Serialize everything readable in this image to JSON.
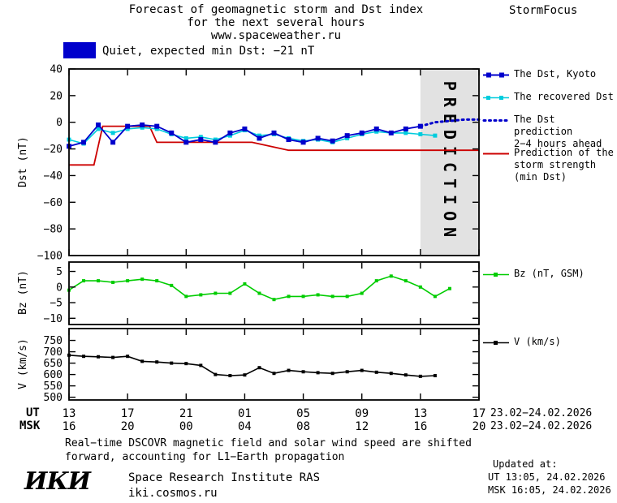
{
  "header": {
    "title_line1": "Forecast of geomagnetic storm and Dst index",
    "title_line2": "for the next several hours",
    "title_line3": "www.spaceweather.ru",
    "brand": "StormFocus"
  },
  "banner": {
    "label": "Quiet, expected min Dst: −21 nT",
    "swatch_color": "#0000cc"
  },
  "colors": {
    "kyoto": "#0000cc",
    "recovered": "#00ccdd",
    "prediction": "#0000cc",
    "storm": "#cc0000",
    "bz": "#00cc00",
    "v": "#000000",
    "band_fill": "#e2e2e2",
    "band_text": "#b4b4b4"
  },
  "legend": {
    "kyoto": "The Dst, Kyoto",
    "recovered": "The recovered Dst",
    "prediction_l1": "The Dst prediction",
    "prediction_l2": "2−4 hours ahead",
    "storm_l1": "Prediction of the",
    "storm_l2": "storm strength",
    "storm_l3": "(min Dst)",
    "bz": "Bz (nT, GSM)",
    "v": "V (km/s)"
  },
  "xaxis": {
    "ut_label": "UT",
    "msk_label": "MSK",
    "tick_hours": [
      0,
      4,
      8,
      12,
      16,
      20,
      24,
      28
    ],
    "ut_ticks": [
      "13",
      "17",
      "21",
      "01",
      "05",
      "09",
      "13",
      "17"
    ],
    "msk_ticks": [
      "16",
      "20",
      "00",
      "04",
      "08",
      "12",
      "16",
      "20"
    ],
    "ut_date": "23.02−24.02.2026",
    "msk_date": "23.02−24.02.2026"
  },
  "footer": {
    "note_l1": "Real−time DSCOVR magnetic field and solar wind speed are shifted",
    "note_l2": "forward, accounting for L1−Earth propagation",
    "updated_label": "Updated at:",
    "updated_ut": "UT  13:05, 24.02.2026",
    "updated_msk": "MSK 16:05, 24.02.2026",
    "logo": "ИКИ",
    "institute": "Space Research Institute RAS",
    "site": "iki.cosmos.ru"
  },
  "chart_data": [
    {
      "id": "dst",
      "type": "line",
      "ylabel": "Dst (nT)",
      "ylim": [
        -100,
        40
      ],
      "ytick_values": [
        40,
        20,
        0,
        -20,
        -40,
        -60,
        -80,
        -100
      ],
      "ytick_labels": [
        "40",
        "20",
        "0",
        "−20",
        "−40",
        "−60",
        "−80",
        "−100"
      ],
      "xlim": [
        0,
        28
      ],
      "xtick_values": [
        0,
        4,
        8,
        12,
        16,
        20,
        24,
        28
      ],
      "prediction_band": {
        "start": 24,
        "end": 28,
        "label": "PREDICTION"
      },
      "series": [
        {
          "id": "storm-strength",
          "name": "Prediction of the storm strength (min Dst)",
          "color": "#cc0000",
          "line": "solid",
          "marker": "none",
          "width": 1.8,
          "x": [
            0,
            1.7,
            2.3,
            5.5,
            6,
            12.5,
            15,
            28
          ],
          "values": [
            -32,
            -32,
            -3,
            -3,
            -15,
            -15,
            -21,
            -21
          ]
        },
        {
          "id": "dst-recovered",
          "name": "The recovered Dst",
          "color": "#00ccdd",
          "line": "solid",
          "marker": "square",
          "marker_size": 5,
          "width": 1.6,
          "x": [
            0,
            1,
            2,
            3,
            4,
            5,
            6,
            7,
            8,
            9,
            10,
            11,
            12,
            13,
            14,
            15,
            16,
            17,
            18,
            19,
            20,
            21,
            22,
            23,
            24,
            25
          ],
          "values": [
            -13,
            -16,
            -5,
            -8,
            -5,
            -4,
            -5,
            -9,
            -12,
            -11,
            -13,
            -10,
            -6,
            -10,
            -9,
            -12,
            -14,
            -13,
            -15,
            -12,
            -9,
            -7,
            -8,
            -8,
            -9,
            -10
          ]
        },
        {
          "id": "dst-kyoto",
          "name": "The Dst, Kyoto",
          "color": "#0000cc",
          "line": "solid",
          "marker": "square",
          "marker_size": 6,
          "width": 1.8,
          "x": [
            0,
            1,
            2,
            3,
            4,
            5,
            6,
            7,
            8,
            9,
            10,
            11,
            12,
            13,
            14,
            15,
            16,
            17,
            18,
            19,
            20,
            21,
            22,
            23,
            24
          ],
          "values": [
            -18,
            -15,
            -2,
            -15,
            -3,
            -2,
            -3,
            -8,
            -15,
            -13,
            -15,
            -8,
            -5,
            -12,
            -8,
            -13,
            -15,
            -12,
            -14,
            -10,
            -8,
            -5,
            -8,
            -5,
            -3
          ]
        },
        {
          "id": "dst-prediction",
          "name": "The Dst prediction 2−4 hours ahead",
          "color": "#0000cc",
          "line": "dotted",
          "marker": "none",
          "width": 3,
          "x": [
            24,
            25,
            26,
            27,
            28
          ],
          "values": [
            -3,
            0,
            1,
            2,
            2
          ]
        }
      ]
    },
    {
      "id": "bz",
      "type": "line",
      "ylabel": "Bz (nT)",
      "ylim": [
        -12,
        8
      ],
      "ytick_values": [
        5,
        0,
        -5,
        -10
      ],
      "ytick_labels": [
        "5",
        "0",
        "−5",
        "−10"
      ],
      "xlim": [
        0,
        28
      ],
      "xtick_values": [
        0,
        4,
        8,
        12,
        16,
        20,
        24,
        28
      ],
      "series": [
        {
          "id": "bz",
          "name": "Bz (nT, GSM)",
          "color": "#00cc00",
          "line": "solid",
          "marker": "square",
          "marker_size": 4,
          "width": 1.6,
          "x": [
            0,
            1,
            2,
            3,
            4,
            5,
            6,
            7,
            8,
            9,
            10,
            11,
            12,
            13,
            14,
            15,
            16,
            17,
            18,
            19,
            20,
            21,
            22,
            23,
            24,
            25,
            26
          ],
          "values": [
            -1,
            2,
            2,
            1.5,
            2,
            2.5,
            2,
            0.5,
            -3,
            -2.5,
            -2,
            -2,
            1,
            -2,
            -4,
            -3,
            -3,
            -2.5,
            -3,
            -3,
            -2,
            2,
            3.5,
            2,
            0,
            -3,
            -0.5
          ]
        }
      ]
    },
    {
      "id": "v",
      "type": "line",
      "ylabel": "V (km/s)",
      "ylim": [
        488,
        802
      ],
      "ytick_values": [
        750,
        700,
        650,
        600,
        550,
        500
      ],
      "ytick_labels": [
        "750",
        "700",
        "650",
        "600",
        "550",
        "500"
      ],
      "xlim": [
        0,
        28
      ],
      "xtick_values": [
        0,
        4,
        8,
        12,
        16,
        20,
        24,
        28
      ],
      "series": [
        {
          "id": "v",
          "name": "V (km/s)",
          "color": "#000000",
          "line": "solid",
          "marker": "square",
          "marker_size": 4,
          "width": 1.6,
          "x": [
            0,
            1,
            2,
            3,
            4,
            5,
            6,
            7,
            8,
            9,
            10,
            11,
            12,
            13,
            14,
            15,
            16,
            17,
            18,
            19,
            20,
            21,
            22,
            23,
            24,
            25
          ],
          "values": [
            685,
            680,
            678,
            675,
            680,
            658,
            655,
            650,
            648,
            640,
            600,
            595,
            598,
            630,
            605,
            618,
            612,
            608,
            605,
            612,
            618,
            610,
            605,
            598,
            592,
            595
          ]
        }
      ]
    }
  ]
}
